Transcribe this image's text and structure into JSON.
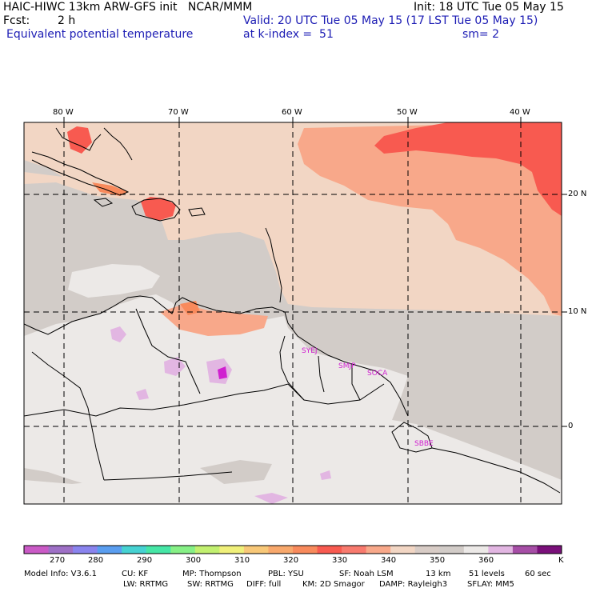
{
  "header": {
    "model_line": "HAIC-HIWC 13km ARW-GFS init   NCAR/MMM",
    "forecast_label": "Fcst:",
    "forecast_value": "2 h",
    "field_name": "Equivalent potential temperature",
    "init_time": "Init: 18 UTC Tue 05 May 15",
    "valid_time": "Valid: 20 UTC Tue 05 May 15 (17 LST Tue 05 May 15)",
    "level": "at k-index =  51",
    "smoothing": "sm= 2"
  },
  "map": {
    "longitude_labels": [
      "80 W",
      "70 W",
      "60 W",
      "50 W",
      "40 W"
    ],
    "latitude_labels": [
      "20 N",
      "10 N",
      "0"
    ],
    "stations": [
      "SYEJ",
      "SMJP",
      "SOCA",
      "SBBE"
    ],
    "colors": {
      "low_270": "#ca5ac6",
      "bg_gray": "#d2ccc8",
      "light": "#ece9e7",
      "peach": "#f2d6c4",
      "salmon": "#f8a88a",
      "red": "#f85a50",
      "orange": "#f88a5c",
      "lavender": "#e2b6e2",
      "station": "#d020d0"
    }
  },
  "colorbar": {
    "labels": [
      "270",
      "280",
      "290",
      "300",
      "310",
      "320",
      "330",
      "340",
      "350",
      "360"
    ],
    "unit": "K",
    "colors": [
      "#ca5ac6",
      "#9e70c6",
      "#8a84ee",
      "#5a9ef0",
      "#46d2d2",
      "#46e6a6",
      "#86f086",
      "#c2f070",
      "#f0f07a",
      "#f8c878",
      "#f8a86c",
      "#f88a5c",
      "#f85a50",
      "#f87a6e",
      "#f8a88a",
      "#f2d6c4",
      "#d8ccc6",
      "#d2ccc8",
      "#ece9e7",
      "#e2b6e2",
      "#a64ea6",
      "#7a107a"
    ]
  },
  "footer": {
    "line1": [
      "Model Info: V3.6.1",
      "CU: KF",
      "MP: Thompson",
      "PBL: YSU",
      "SF: Noah LSM",
      "13 km",
      "51 levels",
      "60 sec"
    ],
    "line2": [
      "LW: RRTMG",
      "SW: RRTMG",
      "DIFF: full",
      "KM: 2D Smagor",
      "DAMP: Rayleigh3",
      "SFLAY: MM5"
    ]
  }
}
